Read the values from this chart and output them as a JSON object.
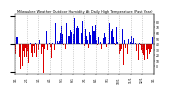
{
  "title": "Milwaukee Weather Outdoor Humidity At Daily High Temperature (Past Year)",
  "n_points": 365,
  "seed": 42,
  "background_color": "#ffffff",
  "blue_color": "#0000dd",
  "red_color": "#dd0000",
  "grid_color": "#999999",
  "y_min": -55,
  "y_max": 55,
  "title_fontsize": 2.5,
  "tick_fontsize": 2.2,
  "right_tick_labels": [
    "80",
    "70",
    "60",
    "50",
    "40",
    "30",
    "20",
    "10",
    "0"
  ],
  "right_tick_values": [
    40,
    30,
    20,
    10,
    0,
    -10,
    -20,
    -30,
    -40
  ],
  "n_grid_lines": 13,
  "bar_width": 0.8
}
